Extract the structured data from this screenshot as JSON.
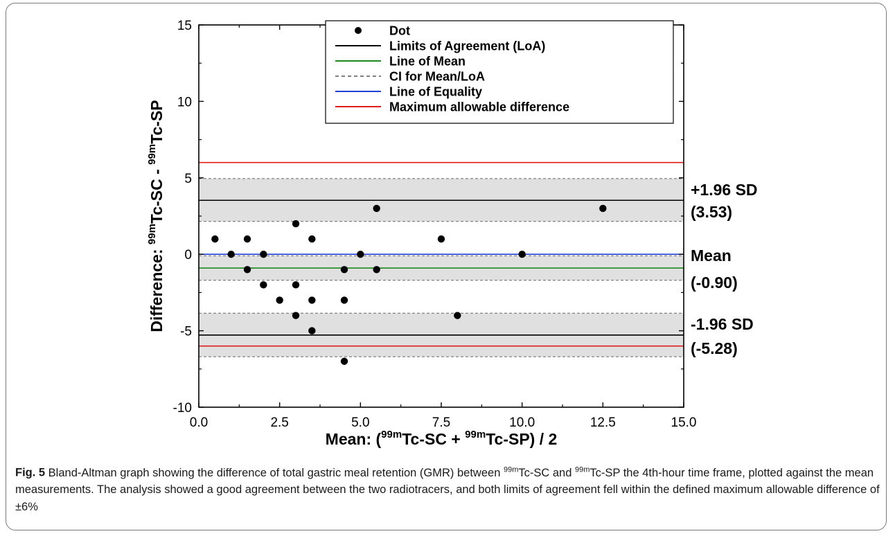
{
  "chart_data": {
    "type": "scatter",
    "title": "",
    "xlabel_parts": [
      "Mean: (",
      "99m",
      "Tc-SC + ",
      "99m",
      "Tc-SP) / 2"
    ],
    "ylabel_parts": [
      "Difference: ",
      "99m",
      "Tc-SC - ",
      "99m",
      "Tc-SP"
    ],
    "xlim": [
      0,
      15
    ],
    "ylim": [
      -10,
      15
    ],
    "xticks": [
      "0.0",
      "2.5",
      "5.0",
      "7.5",
      "10.0",
      "12.5",
      "15.0"
    ],
    "yticks": [
      "-10",
      "-5",
      "0",
      "5",
      "10",
      "15"
    ],
    "xtick_values": [
      0,
      2.5,
      5,
      7.5,
      10,
      12.5,
      15
    ],
    "ytick_values": [
      -10,
      -5,
      0,
      5,
      10,
      15
    ],
    "points": [
      [
        0.5,
        1
      ],
      [
        1,
        0
      ],
      [
        1.5,
        1
      ],
      [
        1.5,
        -1
      ],
      [
        2,
        0
      ],
      [
        2,
        -2
      ],
      [
        2.5,
        -3
      ],
      [
        3,
        2
      ],
      [
        3,
        -2
      ],
      [
        3,
        -4
      ],
      [
        3.5,
        1
      ],
      [
        3.5,
        -3
      ],
      [
        3.5,
        -5
      ],
      [
        4.5,
        -1
      ],
      [
        4.5,
        -3
      ],
      [
        4.5,
        -7
      ],
      [
        5,
        0
      ],
      [
        5.5,
        3
      ],
      [
        5.5,
        -1
      ],
      [
        7.5,
        1
      ],
      [
        8,
        -4
      ],
      [
        10,
        0
      ],
      [
        12.5,
        3
      ]
    ],
    "mean": -0.9,
    "upper_loa": 3.53,
    "lower_loa": -5.28,
    "ci_mean": [
      -1.7,
      -0.1
    ],
    "ci_upper_loa": [
      2.15,
      4.95
    ],
    "ci_lower_loa": [
      -6.7,
      -3.85
    ],
    "line_of_equality": 0,
    "max_allowable_difference": [
      6,
      -6
    ],
    "legend_position": "top-right",
    "legend": [
      {
        "label": "Dot",
        "kind": "dot",
        "color": "#000000"
      },
      {
        "label": "Limits of Agreement (LoA)",
        "kind": "line",
        "color": "#000000"
      },
      {
        "label": "Line of Mean",
        "kind": "line",
        "color": "#1a8a1a"
      },
      {
        "label": "CI for Mean/LoA",
        "kind": "dash",
        "color": "#555555"
      },
      {
        "label": "Line of Equality",
        "kind": "line",
        "color": "#1f3fd6"
      },
      {
        "label": "Maximum allowable difference",
        "kind": "line",
        "color": "#e01b1b"
      }
    ],
    "annotations": {
      "upper_label": "+1.96 SD",
      "upper_value": "(3.53)",
      "mean_label": "Mean",
      "mean_value": "(-0.90)",
      "lower_label": "-1.96 SD",
      "lower_value": "(-5.28)"
    },
    "colors": {
      "ci_band": "#e0e0e0",
      "mean_line": "#1a8a1a",
      "equality_line": "#1f3fd6",
      "max_line": "#e01b1b",
      "loa_line": "#000000"
    }
  },
  "caption": {
    "label": "Fig. 5",
    "segments": [
      {
        "t": " Bland-Altman graph showing the difference of total gastric meal retention (GMR) between ",
        "sup": false
      },
      {
        "t": "99m",
        "sup": true
      },
      {
        "t": "Tc-SC and ",
        "sup": false
      },
      {
        "t": "99m",
        "sup": true
      },
      {
        "t": "Tc-SP the 4th-hour time frame, plotted against the mean measurements. The analysis showed a good agreement between the two radiotracers, and both limits of agreement fell within the defined maximum allowable difference of ±6%",
        "sup": false
      }
    ]
  }
}
